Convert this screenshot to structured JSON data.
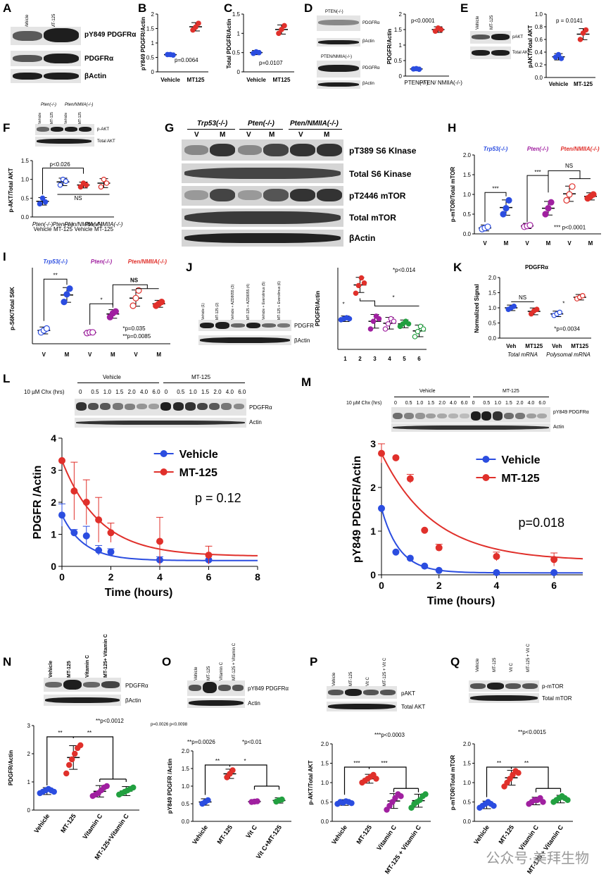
{
  "letters": {
    "A": "A",
    "B": "B",
    "C": "C",
    "D": "D",
    "E": "E",
    "F": "F",
    "G": "G",
    "H": "H",
    "I": "I",
    "J": "J",
    "K": "K",
    "L": "L",
    "M": "M",
    "N": "N",
    "O": "O",
    "P": "P",
    "Q": "Q"
  },
  "A": {
    "lanes": [
      "Vehicle",
      "MT-125"
    ],
    "bands": [
      "pY849 PDGFRα",
      "PDGFRα",
      "βActin"
    ]
  },
  "B": {
    "ylabel": "pY849 PDGFR/Actin",
    "xlabels": [
      "Vehicle",
      "MT125"
    ],
    "p": "p=0.0064",
    "ticks": [
      "0",
      "0.5",
      "1",
      "1.5",
      "2"
    ]
  },
  "C": {
    "ylabel": "Total PDGFR/Actin",
    "xlabels": [
      "Vehicle",
      "MT125"
    ],
    "p": "p=0.0107",
    "ticks": [
      "0",
      "0.5",
      "1",
      "1.5"
    ]
  },
  "D": {
    "blot_top_title": "PTEN(-/-)",
    "blot_bottom_title": "PTEN/NMIIA(-/-)",
    "bands": [
      "PDGFRα",
      "βActin",
      "PDGFRα",
      "βActin"
    ],
    "ylabel": "PDGFR/Actin",
    "xlabels": [
      "PTEN(-/-)",
      "PTEN/ NMIIA(-/-)"
    ],
    "p": "p<0.0001",
    "ticks": [
      "0",
      "0.5",
      "1",
      "1.5",
      "2"
    ]
  },
  "E": {
    "lanes": [
      "Vehicle",
      "MT-125"
    ],
    "bands": [
      "pAKT",
      "Total AKT"
    ],
    "ylabel": "pAKT/Total AKT",
    "xlabels": [
      "Vehicle",
      "MT-125"
    ],
    "p": "p = 0.0141",
    "ticks": [
      "0.0",
      "0.2",
      "0.4",
      "0.6",
      "0.8",
      "1.0"
    ]
  },
  "F": {
    "groups": [
      "Pten(-/-)",
      "Pten/NMIIA(-/-)"
    ],
    "lanes": [
      "Vehicle",
      "MT-125",
      "Vehicle",
      "MT-125"
    ],
    "bands": [
      "p-AKT",
      "Total AKT"
    ],
    "ylabel": "p-AKT/Total AKT",
    "p": "p<0.026",
    "ns": "NS",
    "xlabels": [
      "Pten(-/-) Vehicle",
      "Pten(-/-) MT-125",
      "Pten/NMIIA(-/-) Vehicle",
      "Pten/NMIIA(-/-) MT-125"
    ],
    "ticks": [
      "0.0",
      "0.5",
      "1.0",
      "1.5"
    ]
  },
  "G": {
    "groups": [
      "Trp53(-/-)",
      "Pten(-/-)",
      "Pten/NMIIA(-/-)"
    ],
    "lanes": [
      "V",
      "M",
      "V",
      "M",
      "V",
      "M"
    ],
    "bands": [
      "pT389 S6 KInase",
      "Total S6 Kinase",
      "pT2446 mTOR",
      "Total mTOR",
      "βActin"
    ]
  },
  "H": {
    "groups": [
      "Trp53(-/-)",
      "Pten(-/-)",
      "Pten/NMIIA(-/-)"
    ],
    "ylabel": "p-mTOR/Total mTOR",
    "xlabels": [
      "V",
      "M",
      "V",
      "M",
      "V",
      "M"
    ],
    "stars": [
      "***",
      "***"
    ],
    "ns": "NS",
    "p": "*** p<0.0001",
    "ticks": [
      "0.0",
      "0.5",
      "1.0",
      "1.5",
      "2.0"
    ]
  },
  "I": {
    "groups": [
      "Trp53(-/-)",
      "Pten(-/-)",
      "Pten/NMIIA(-/-)"
    ],
    "ylabel": "p-S6K/Total S6K",
    "xlabels": [
      "V",
      "M",
      "V",
      "M",
      "V",
      "M"
    ],
    "stars": [
      "**",
      "*"
    ],
    "ns": "NS",
    "p1": "*p=0.035",
    "p2": "**p=0.0085"
  },
  "J": {
    "lanes": [
      "Vehicle (1)",
      "MT-125 (2)",
      "Vehicle + AZD8055 (3)",
      "MT-125 + AZD8055 (4)",
      "Vehicle + Everolimus (5)",
      "MT-125 + Everolimus (6)"
    ],
    "bands": [
      "PDGFR",
      "βActin"
    ],
    "ylabel": "PDGFR/Actin",
    "xlabels": [
      "1",
      "2",
      "3",
      "4",
      "5",
      "6"
    ],
    "p": "*p<0.014",
    "star": "*"
  },
  "K": {
    "title": "PDGFRα",
    "ylabel": "Normalized Signal",
    "xlabels": [
      "Veh",
      "MT125",
      "Veh",
      "MT125"
    ],
    "groups": [
      "Total mRNA",
      "Polysomal mRNA"
    ],
    "ns": "NS",
    "star": "*",
    "p": "*p=0.0034",
    "ticks": [
      "0.0",
      "0.5",
      "1.0",
      "1.5",
      "2.0"
    ]
  },
  "L": {
    "chx": "10 µM Chx (hrs)",
    "groups": [
      "Vehicle",
      "MT-125"
    ],
    "times": [
      "0",
      "0.5",
      "1.0",
      "1.5",
      "2.0",
      "4.0",
      "6.0",
      "0",
      "0.5",
      "1.0",
      "1.5",
      "2.0",
      "4.0",
      "6.0"
    ],
    "bands": [
      "PDGFRα",
      "Actin"
    ],
    "ylabel": "PDGFR  /Actin",
    "xlabel": "Time (hours)",
    "p": "p = 0.12",
    "legend": [
      "Vehicle",
      "MT-125"
    ]
  },
  "M": {
    "chx": "10 µM Chx (hrs)",
    "groups": [
      "Vehicle",
      "MT-125"
    ],
    "times": [
      "0",
      "0.5",
      "1.0",
      "1.5",
      "2.0",
      "4.0",
      "6.0",
      "0",
      "0.5",
      "1.0",
      "1.5",
      "2.0",
      "4.0",
      "6.0"
    ],
    "bands": [
      "pY849 PDGFRα",
      "Actin"
    ],
    "ylabel": "pY849 PDGFR/Actin",
    "xlabel": "Time (hours)",
    "p": "p=0.018",
    "legend": [
      "Vehicle",
      "MT-125"
    ]
  },
  "N": {
    "lanes": [
      "Vehicle",
      "MT-125",
      "Vitamin C",
      "MT-125+ Vitamin C"
    ],
    "bands": [
      "PDGFRα",
      "βActin"
    ],
    "ylabel": "PDGFR/Actin",
    "xlabels": [
      "Vehicle",
      "MT-125",
      "Vitamin C",
      "MT-125+Vitamin C"
    ],
    "stars": [
      "**",
      "**"
    ],
    "p": "**p<0.0012",
    "ticks": [
      "0",
      "1",
      "2",
      "3"
    ]
  },
  "O": {
    "lanes": [
      "Vehicle",
      "MT-125",
      "Vitamin C",
      "MT-125 + Vitamin C"
    ],
    "bands": [
      "pY849 PDGFRα",
      "Actin"
    ],
    "small": "p=0.0026    p<0.0098",
    "ylabel": "pY849 PDGFR  /Actin",
    "xlabels": [
      "Vehicle",
      "MT-125",
      "Vit C",
      "Vit C+MT-125"
    ],
    "stars": [
      "**",
      "*"
    ],
    "p1": "**p=0.0026",
    "p2": "*p<0.01",
    "ticks": [
      "0.0",
      "0.5",
      "1.0",
      "1.5",
      "2.0"
    ]
  },
  "P": {
    "lanes": [
      "Vehicle",
      "MT-125",
      "Vit C",
      "MT-125 + Vit C"
    ],
    "bands": [
      "pAKT",
      "Total AKT"
    ],
    "ylabel": "p-AKT/Total AKT",
    "xlabels": [
      "Vehicle",
      "MT-125",
      "Vitamin C",
      "MT-125 + Vitamin C"
    ],
    "stars": [
      "***",
      "***"
    ],
    "p": "***p<0.0003",
    "ticks": [
      "0.0",
      "0.5",
      "1.0",
      "1.5",
      "2.0"
    ]
  },
  "Q": {
    "lanes": [
      "Vehicle",
      "MT-125",
      "Vit C",
      "MT-125 + Vit C"
    ],
    "bands": [
      "p-mTOR",
      "Total mTOR"
    ],
    "ylabel": "p-mTOR/Total mTOR",
    "xlabels": [
      "Vehicle",
      "MT-125",
      "Vitamin C",
      "MT-125 + Vitamin C"
    ],
    "stars": [
      "**",
      "**"
    ],
    "p": "**p<0.0015",
    "ticks": [
      "0.0",
      "0.5",
      "1.0",
      "1.5",
      "2.0"
    ]
  },
  "watermark": "公众号·美拜生物",
  "chart_data": [
    {
      "panel": "B",
      "type": "scatter",
      "ylabel": "pY849 PDGFR/Actin",
      "ylim": [
        0,
        2
      ],
      "categories": [
        "Vehicle",
        "MT125"
      ],
      "series": [
        {
          "values": [
            [
              0.6,
              0.6,
              0.58
            ],
            [
              1.45,
              1.55,
              1.68
            ]
          ]
        }
      ],
      "annotation": "p=0.0064"
    },
    {
      "panel": "C",
      "type": "scatter",
      "ylabel": "Total PDGFR/Actin",
      "ylim": [
        0,
        1.5
      ],
      "categories": [
        "Vehicle",
        "MT125"
      ],
      "series": [
        {
          "values": [
            [
              0.48,
              0.52,
              0.5
            ],
            [
              1.0,
              1.1,
              1.2
            ]
          ]
        }
      ],
      "annotation": "p=0.0107"
    },
    {
      "panel": "D",
      "type": "scatter",
      "ylabel": "PDGFR/Actin",
      "ylim": [
        0,
        2
      ],
      "categories": [
        "PTEN(-/-)",
        "PTEN/ NMIIA(-/-)"
      ],
      "series": [
        {
          "values": [
            [
              0.23,
              0.24,
              0.22
            ],
            [
              1.45,
              1.55,
              1.5
            ]
          ]
        }
      ],
      "annotation": "p<0.0001"
    },
    {
      "panel": "E",
      "type": "scatter",
      "ylabel": "pAKT/Total AKT",
      "ylim": [
        0,
        1
      ],
      "categories": [
        "Vehicle",
        "MT-125"
      ],
      "series": [
        {
          "values": [
            [
              0.32,
              0.36,
              0.3
            ],
            [
              0.6,
              0.7,
              0.75
            ]
          ]
        }
      ],
      "annotation": "p = 0.0141"
    },
    {
      "panel": "F",
      "type": "scatter",
      "ylabel": "p-AKT/Total AKT",
      "ylim": [
        0,
        1.5
      ],
      "categories": [
        "Pten(-/-) Vehicle",
        "Pten(-/-) MT-125",
        "Pten/NMIIA(-/-) Vehicle",
        "Pten/NMIIA(-/-) MT-125"
      ],
      "series": [
        {
          "values": [
            [
              0.35,
              0.5,
              0.4
            ],
            [
              0.85,
              1.0,
              0.95
            ],
            [
              0.8,
              0.9,
              0.85
            ],
            [
              0.8,
              1.0,
              0.9
            ]
          ]
        }
      ],
      "annotation": "p<0.026"
    },
    {
      "panel": "H",
      "type": "scatter",
      "ylabel": "p-mTOR/Total mTOR",
      "ylim": [
        0,
        2
      ],
      "categories": [
        "V",
        "M",
        "V",
        "M",
        "V",
        "M"
      ],
      "series": [
        {
          "values": [
            [
              0.12,
              0.15,
              0.18
            ],
            [
              0.5,
              0.65,
              0.85
            ],
            [
              0.18,
              0.2,
              0.22
            ],
            [
              0.5,
              0.65,
              0.8
            ],
            [
              0.85,
              1.0,
              1.2
            ],
            [
              0.9,
              0.95,
              1.0
            ]
          ]
        }
      ],
      "annotation": "*** p<0.0001"
    },
    {
      "panel": "I",
      "type": "scatter",
      "ylabel": "p-S6K/Total S6K",
      "categories": [
        "V",
        "M",
        "V",
        "M",
        "V",
        "M"
      ],
      "series": [
        {
          "values": [
            [
              0.3,
              0.35,
              0.4
            ],
            [
              1.1,
              1.3,
              1.45
            ],
            [
              0.28,
              0.3,
              0.3
            ],
            [
              0.7,
              0.8,
              0.85
            ],
            [
              1.0,
              1.2,
              1.4
            ],
            [
              1.0,
              1.05,
              1.1
            ]
          ]
        }
      ],
      "annotation": "*p=0.035 **p=0.0085"
    },
    {
      "panel": "J",
      "type": "scatter",
      "ylabel": "PDGFR/Actin",
      "categories": [
        "1",
        "2",
        "3",
        "4",
        "5",
        "6"
      ],
      "series": [
        {
          "values": [
            [
              0.58,
              0.6,
              0.62,
              0.6
            ],
            [
              1.1,
              1.25,
              1.4,
              1.3
            ],
            [
              0.4,
              0.55,
              0.65,
              0.6
            ],
            [
              0.4,
              0.5,
              0.6,
              0.55
            ],
            [
              0.45,
              0.5,
              0.55,
              0.5
            ],
            [
              0.25,
              0.35,
              0.45,
              0.4
            ]
          ]
        }
      ],
      "annotation": "*p<0.014"
    },
    {
      "panel": "K",
      "type": "scatter",
      "ylabel": "Normalized Signal",
      "ylim": [
        0,
        2
      ],
      "categories": [
        "Veh",
        "MT125",
        "Veh",
        "MT125"
      ],
      "series": [
        {
          "values": [
            [
              0.95,
              1.0,
              1.05
            ],
            [
              0.8,
              0.9,
              0.95
            ],
            [
              0.75,
              0.8,
              0.85
            ],
            [
              1.3,
              1.35,
              1.4
            ]
          ]
        }
      ],
      "annotation": "*p=0.0034"
    },
    {
      "panel": "L",
      "type": "scatter",
      "xlabel": "Time (hours)",
      "ylabel": "PDGFR  /Actin",
      "xlim": [
        0,
        8
      ],
      "ylim": [
        0,
        4
      ],
      "series": [
        {
          "name": "Vehicle",
          "x": [
            0,
            0.5,
            1,
            1.5,
            2,
            4,
            6
          ],
          "y": [
            1.6,
            1.05,
            0.95,
            0.5,
            0.45,
            0.2,
            0.2
          ],
          "color": "#2b4de0"
        },
        {
          "name": "MT-125",
          "x": [
            0,
            0.5,
            1,
            1.5,
            2,
            4,
            6
          ],
          "y": [
            3.3,
            2.35,
            2.0,
            1.45,
            1.05,
            0.78,
            0.35
          ],
          "color": "#e0302b"
        }
      ],
      "annotation": "p = 0.12"
    },
    {
      "panel": "M",
      "type": "scatter",
      "xlabel": "Time (hours)",
      "ylabel": "pY849 PDGFR/Actin",
      "xlim": [
        0,
        7
      ],
      "ylim": [
        0,
        3
      ],
      "series": [
        {
          "name": "Vehicle",
          "x": [
            0,
            0.5,
            1,
            1.5,
            2,
            4,
            6
          ],
          "y": [
            1.52,
            0.52,
            0.38,
            0.2,
            0.1,
            0.05,
            0.05
          ],
          "color": "#2b4de0"
        },
        {
          "name": "MT-125",
          "x": [
            0,
            0.5,
            1,
            1.5,
            2,
            4,
            6
          ],
          "y": [
            2.78,
            2.68,
            2.2,
            1.02,
            0.62,
            0.42,
            0.35
          ],
          "color": "#e0302b"
        }
      ],
      "annotation": "p=0.018"
    },
    {
      "panel": "N",
      "type": "scatter",
      "ylabel": "PDGFR/Actin",
      "ylim": [
        0,
        3
      ],
      "categories": [
        "Vehicle",
        "MT-125",
        "Vitamin C",
        "MT-125+Vitamin C"
      ],
      "series": [
        {
          "values": [
            [
              0.6,
              0.65,
              0.7,
              0.75,
              0.7,
              0.65
            ],
            [
              1.3,
              1.6,
              1.8,
              2.0,
              2.2,
              2.3
            ],
            [
              0.5,
              0.55,
              0.6,
              0.7,
              0.8,
              0.85
            ],
            [
              0.55,
              0.6,
              0.65,
              0.7,
              0.75,
              0.8
            ]
          ]
        }
      ],
      "annotation": "**p<0.0012"
    },
    {
      "panel": "O",
      "type": "scatter",
      "ylabel": "pY849 PDGFR  /Actin",
      "ylim": [
        0,
        2
      ],
      "categories": [
        "Vehicle",
        "MT-125",
        "Vit C",
        "Vit C+MT-125"
      ],
      "series": [
        {
          "values": [
            [
              0.5,
              0.55,
              0.6
            ],
            [
              1.25,
              1.35,
              1.45
            ],
            [
              0.55,
              0.56,
              0.57
            ],
            [
              0.56,
              0.6,
              0.62
            ]
          ]
        }
      ],
      "annotation": "**p=0.0026 *p<0.01"
    },
    {
      "panel": "P",
      "type": "scatter",
      "ylabel": "p-AKT/Total AKT",
      "ylim": [
        0,
        2
      ],
      "categories": [
        "Vehicle",
        "MT-125",
        "Vitamin C",
        "MT-125 + Vitamin C"
      ],
      "series": [
        {
          "values": [
            [
              0.45,
              0.5,
              0.48,
              0.52,
              0.5,
              0.47
            ],
            [
              1.0,
              1.05,
              1.1,
              1.15,
              1.2,
              1.1
            ],
            [
              0.3,
              0.4,
              0.5,
              0.6,
              0.7,
              0.65
            ],
            [
              0.35,
              0.45,
              0.5,
              0.55,
              0.65,
              0.7
            ]
          ]
        }
      ],
      "annotation": "***p<0.0003"
    },
    {
      "panel": "Q",
      "type": "scatter",
      "ylabel": "p-mTOR/Total mTOR",
      "ylim": [
        0,
        2
      ],
      "categories": [
        "Vehicle",
        "MT-125",
        "Vitamin C",
        "MT-125 + Vitamin C"
      ],
      "series": [
        {
          "values": [
            [
              0.35,
              0.4,
              0.45,
              0.5,
              0.45,
              0.4
            ],
            [
              0.9,
              1.0,
              1.1,
              1.2,
              1.3,
              1.25
            ],
            [
              0.45,
              0.5,
              0.55,
              0.55,
              0.6,
              0.5
            ],
            [
              0.5,
              0.55,
              0.6,
              0.65,
              0.6,
              0.55
            ]
          ]
        }
      ],
      "annotation": "**p<0.0015"
    }
  ]
}
